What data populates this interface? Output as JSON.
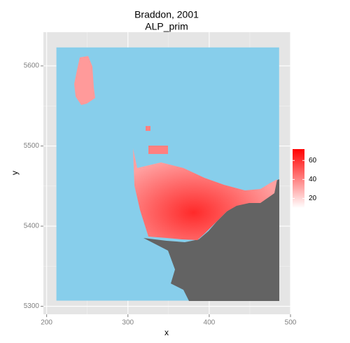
{
  "chart_data": {
    "type": "raster",
    "title": "Braddon, 2001",
    "subtitle": "ALP_prim",
    "x_label": "x",
    "y_label": "y",
    "xlim": [
      196,
      500
    ],
    "ylim": [
      5290,
      5642
    ],
    "xticks": [
      200,
      300,
      400,
      500
    ],
    "yticks": [
      5300,
      5400,
      5500,
      5600
    ],
    "xminor": [
      250,
      350,
      450
    ],
    "yminor": [
      5350,
      5450,
      5550
    ],
    "grid": true,
    "raster_extent": {
      "x": [
        212,
        486
      ],
      "y": [
        5307,
        5623
      ]
    },
    "background_color": "#87CEEB",
    "land_color": "#636363",
    "legend": {
      "position": "right",
      "limits": [
        10,
        72
      ],
      "ticks": [
        20,
        40,
        60
      ],
      "low": "#FFFFFF",
      "high": "#FF0000"
    }
  }
}
